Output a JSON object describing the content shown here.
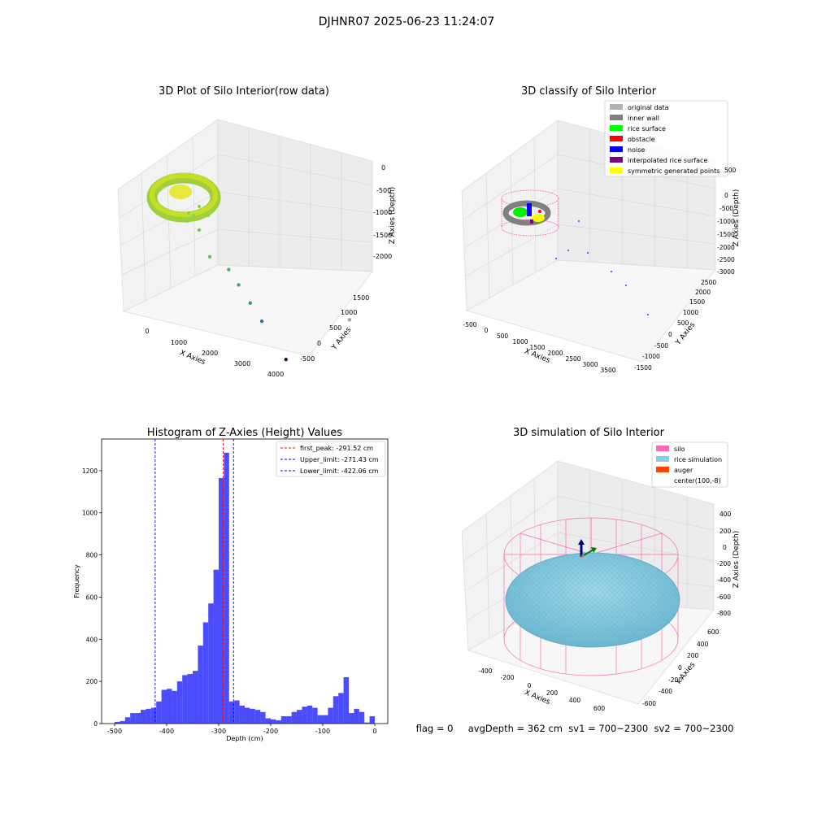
{
  "figure": {
    "suptitle": "DJHNR07 2025-06-23 11:24:07"
  },
  "chart_data": [
    {
      "type": "scatter",
      "title": "3D Plot of Silo Interior(row data)",
      "xlabel": "X Axies",
      "ylabel": "Y Axies",
      "zlabel": "Z Axies (Depth)",
      "xticks": [
        "0",
        "1000",
        "2000",
        "3000",
        "4000"
      ],
      "yticks": [
        "-500",
        "0",
        "500",
        "1000",
        "1500"
      ],
      "zticks": [
        "0",
        "-500",
        "-1000",
        "-1500",
        "-2000"
      ],
      "xlim": [
        -500,
        4000
      ],
      "ylim": [
        -800,
        1800
      ],
      "zlim": [
        -2300,
        0
      ],
      "grid": true,
      "points": [
        {
          "x": 900,
          "y": 400,
          "z": -600
        },
        {
          "x": 1100,
          "y": 500,
          "z": -1100
        },
        {
          "x": 1500,
          "y": 600,
          "z": -1300
        },
        {
          "x": 1800,
          "y": 500,
          "z": -1500
        },
        {
          "x": 2200,
          "y": 300,
          "z": -1700
        },
        {
          "x": 2600,
          "y": 100,
          "z": -1900
        },
        {
          "x": 3900,
          "y": 1500,
          "z": -2100
        },
        {
          "x": 3600,
          "y": -600,
          "z": -2200
        }
      ]
    },
    {
      "type": "scatter",
      "title": "3D classify of Silo Interior",
      "xlabel": "X Axies",
      "ylabel": "Y Axies",
      "zlabel": "Z Axies (Depth)",
      "xticks": [
        "-500",
        "0",
        "500",
        "1000",
        "1500",
        "2000",
        "2500",
        "3000",
        "3500"
      ],
      "yticks": [
        "-1500",
        "-1000",
        "-500",
        "0",
        "500",
        "1000",
        "1500",
        "2000",
        "2500"
      ],
      "zticks": [
        "500",
        "0",
        "-500",
        "-1000",
        "-1500",
        "-2000",
        "-2500",
        "-3000"
      ],
      "grid": true,
      "legend": {
        "placement": "top-right",
        "entries": [
          {
            "label": "original data",
            "color": "#b3b3b3"
          },
          {
            "label": "inner wall",
            "color": "#808080"
          },
          {
            "label": "rice surface",
            "color": "#00ff00"
          },
          {
            "label": "obstacle",
            "color": "#ff0000"
          },
          {
            "label": "noise",
            "color": "#0000ff"
          },
          {
            "label": "interpolated rice surface",
            "color": "#800080"
          },
          {
            "label": "symmetric generated points",
            "color": "#ffff00"
          }
        ]
      }
    },
    {
      "type": "bar",
      "title": "Histogram of Z-Axies (Height) Values",
      "xlabel": "Depth (cm)",
      "ylabel": "Frequency",
      "xlim": [
        -525,
        25
      ],
      "ylim": [
        0,
        1350
      ],
      "xticks": [
        -500,
        -400,
        -300,
        -200,
        -100,
        0
      ],
      "yticks": [
        0,
        200,
        400,
        600,
        800,
        1000,
        1200
      ],
      "bar_color": "#0000ff",
      "bins_left_edges": [
        -500,
        -490,
        -480,
        -470,
        -460,
        -450,
        -440,
        -430,
        -420,
        -410,
        -400,
        -390,
        -380,
        -370,
        -360,
        -350,
        -340,
        -330,
        -320,
        -310,
        -300,
        -290,
        -280,
        -270,
        -260,
        -250,
        -240,
        -230,
        -220,
        -210,
        -200,
        -190,
        -180,
        -170,
        -160,
        -150,
        -140,
        -130,
        -120,
        -110,
        -100,
        -90,
        -80,
        -70,
        -60,
        -50,
        -40,
        -30,
        -20,
        -10,
        0
      ],
      "bin_width": 10,
      "values": [
        8,
        12,
        30,
        50,
        50,
        65,
        70,
        75,
        105,
        160,
        165,
        155,
        200,
        230,
        235,
        250,
        370,
        480,
        570,
        730,
        1165,
        1285,
        105,
        110,
        85,
        75,
        70,
        65,
        55,
        25,
        20,
        15,
        35,
        35,
        55,
        65,
        80,
        85,
        75,
        40,
        40,
        75,
        130,
        145,
        220,
        50,
        70,
        55,
        5,
        35,
        0
      ],
      "lines": [
        {
          "label": "first_peak: -291.52 cm",
          "x": -291.52,
          "color": "#ff0000",
          "dash": "dashed"
        },
        {
          "label": "Upper_limit: -271.43 cm",
          "x": -271.43,
          "color": "#0000ff",
          "dash": "dashed"
        },
        {
          "label": "Lower_limit: -422.06 cm",
          "x": -422.06,
          "color": "#0000ff",
          "dash": "dashed"
        }
      ],
      "legend": {
        "placement": "top-right"
      },
      "grid": false
    },
    {
      "type": "surface",
      "title": "3D simulation of Silo Interior",
      "xlabel": "X Axies",
      "ylabel": "Y Axies",
      "zlabel": "Z Axies (Depth)",
      "xticks": [
        "-400",
        "-200",
        "0",
        "200",
        "400",
        "600"
      ],
      "yticks": [
        "-600",
        "-400",
        "-200",
        "0",
        "200",
        "400",
        "600"
      ],
      "zticks": [
        "400",
        "200",
        "0",
        "-200",
        "-400",
        "-600",
        "-800"
      ],
      "grid": true,
      "legend": {
        "placement": "top-right",
        "entries": [
          {
            "label": "silo",
            "color": "#ff69b4"
          },
          {
            "label": "rice simulation",
            "color": "#87ceeb"
          },
          {
            "label": "auger",
            "color": "#ff4500"
          },
          {
            "label": "center(100,-8)",
            "color": "#ffffff"
          }
        ]
      }
    }
  ],
  "status": {
    "text": "flag = 0     avgDepth = 362 cm  sv1 = 700~2300  sv2 = 700~2300"
  }
}
